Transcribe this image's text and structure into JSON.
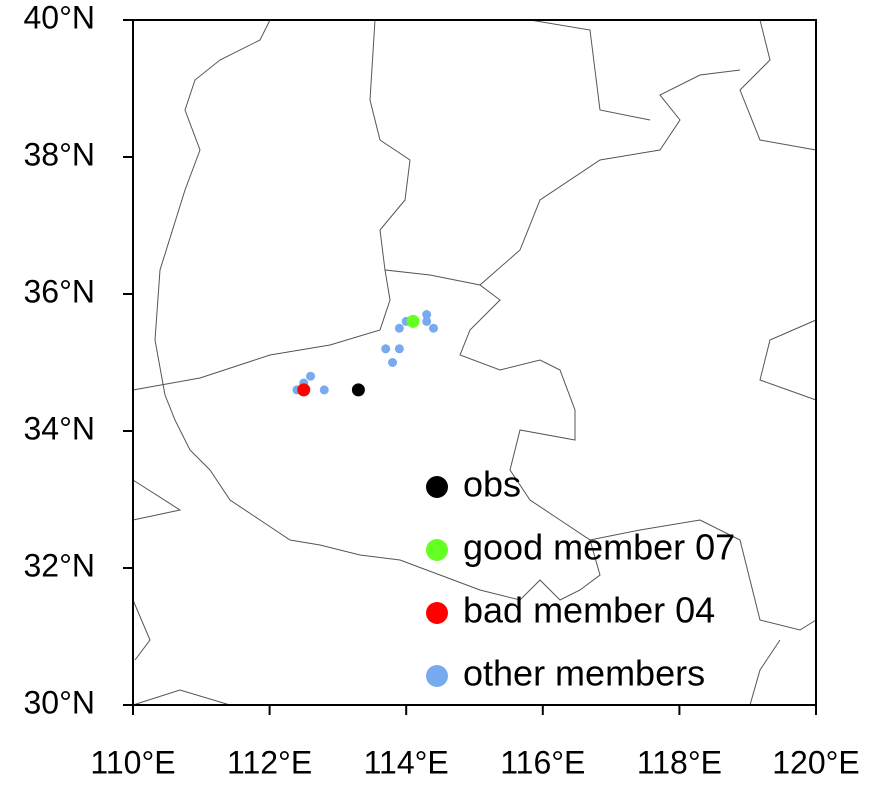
{
  "chart_data": {
    "type": "scatter",
    "xlim": [
      110,
      120
    ],
    "ylim": [
      30,
      40
    ],
    "xticks": [
      {
        "value": 110,
        "label": "110°E"
      },
      {
        "value": 112,
        "label": "112°E"
      },
      {
        "value": 114,
        "label": "114°E"
      },
      {
        "value": 116,
        "label": "116°E"
      },
      {
        "value": 118,
        "label": "118°E"
      },
      {
        "value": 120,
        "label": "120°E"
      }
    ],
    "yticks": [
      {
        "value": 30,
        "label": "30°N"
      },
      {
        "value": 32,
        "label": "32°N"
      },
      {
        "value": 34,
        "label": "34°N"
      },
      {
        "value": 36,
        "label": "36°N"
      },
      {
        "value": 38,
        "label": "38°N"
      },
      {
        "value": 40,
        "label": "40°N"
      }
    ],
    "series": [
      {
        "name": "obs",
        "color": "#000000",
        "x": [
          113.3
        ],
        "y": [
          34.6
        ]
      },
      {
        "name": "good member 07",
        "color": "#66ff22",
        "x": [
          114.1
        ],
        "y": [
          35.6
        ]
      },
      {
        "name": "bad member 04",
        "color": "#ff0000",
        "x": [
          112.5
        ],
        "y": [
          34.6
        ]
      },
      {
        "name": "other members",
        "color": "#77aaee",
        "x": [
          114.3,
          114.3,
          114.4,
          114.0,
          113.9,
          113.7,
          113.9,
          113.8,
          112.6,
          112.5,
          112.4,
          112.8
        ],
        "y": [
          35.7,
          35.6,
          35.5,
          35.6,
          35.5,
          35.2,
          35.2,
          35.0,
          34.8,
          34.7,
          34.6,
          34.6
        ]
      }
    ]
  }
}
